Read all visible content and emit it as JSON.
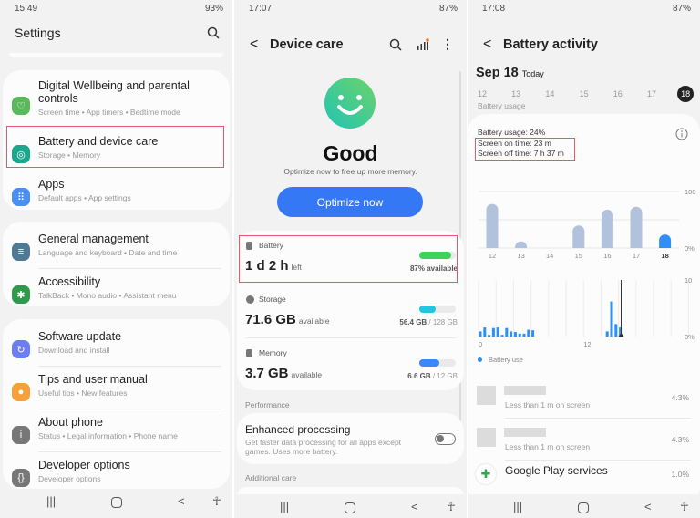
{
  "settings": {
    "status": {
      "time": "15:49",
      "battery": "93%"
    },
    "title": "Settings",
    "groups": [
      [
        {
          "title": "Digital Wellbeing and parental controls",
          "subtitle": "Screen time  •  App timers  •  Bedtime mode",
          "icon": "digital-wellbeing-icon",
          "color": "#5cb85c"
        },
        {
          "title": "Battery and device care",
          "subtitle": "Storage  •  Memory",
          "icon": "device-care-icon",
          "color": "#1aa78c"
        },
        {
          "title": "Apps",
          "subtitle": "Default apps  •  App settings",
          "icon": "apps-icon",
          "color": "#4b8ff5"
        }
      ],
      [
        {
          "title": "General management",
          "subtitle": "Language and keyboard  •  Date and time",
          "icon": "sliders-icon",
          "color": "#4f7a94"
        },
        {
          "title": "Accessibility",
          "subtitle": "TalkBack  •  Mono audio  •  Assistant menu",
          "icon": "accessibility-icon",
          "color": "#2f9a49"
        }
      ],
      [
        {
          "title": "Software update",
          "subtitle": "Download and install",
          "icon": "software-update-icon",
          "color": "#6c7ef2"
        },
        {
          "title": "Tips and user manual",
          "subtitle": "Useful tips  •  New features",
          "icon": "lightbulb-icon",
          "color": "#f5a03a"
        },
        {
          "title": "About phone",
          "subtitle": "Status  •  Legal information  •  Phone name",
          "icon": "info-icon",
          "color": "#777777"
        },
        {
          "title": "Developer options",
          "subtitle": "Developer options",
          "icon": "developer-icon",
          "color": "#777777"
        }
      ]
    ]
  },
  "device_care": {
    "status": {
      "time": "17:07",
      "battery": "87%"
    },
    "title": "Device care",
    "state": "Good",
    "message": "Optimize now to free up more memory.",
    "optimize_label": "Optimize now",
    "battery": {
      "label": "Battery",
      "value": "1 d 2 h",
      "unit": "left",
      "detail": "87% available",
      "level": 0.87,
      "color": "#3ed35a"
    },
    "storage": {
      "label": "Storage",
      "value": "71.6 GB",
      "unit": "available",
      "used": "56.4 GB",
      "total": " / 128 GB",
      "level": 0.44,
      "color": "#1ec8e0"
    },
    "memory": {
      "label": "Memory",
      "value": "3.7 GB",
      "unit": "available",
      "used": "6.6 GB",
      "total": " / 12 GB",
      "level": 0.55,
      "color": "#3d86f5"
    },
    "performance_header": "Performance",
    "enhanced_title": "Enhanced processing",
    "enhanced_desc": "Get faster data processing for all apps except games. Uses more battery.",
    "enhanced_on": false,
    "additional_header": "Additional care"
  },
  "battery_activity": {
    "status": {
      "time": "17:08",
      "battery": "87%"
    },
    "title": "Battery activity",
    "date": "Sep 18",
    "today": "Today",
    "days": [
      "12",
      "13",
      "14",
      "15",
      "16",
      "17",
      "18"
    ],
    "selected_day": "18",
    "section": "Battery usage",
    "usage": "Battery usage: 24%",
    "screen_on": "Screen on time: 23 m",
    "screen_off": "Screen off time: 7 h 37 m",
    "legend": "Battery use",
    "apps": [
      {
        "name": "",
        "detail": "Less than 1 m on screen",
        "percent": "4.3%"
      },
      {
        "name": "",
        "detail": "Less than 1 m on screen",
        "percent": "4.3%"
      },
      {
        "name": "Google Play services",
        "detail": "",
        "percent": "1.0%"
      }
    ]
  },
  "chart_data": [
    {
      "type": "bar",
      "categories": [
        "12",
        "13",
        "14",
        "15",
        "16",
        "17",
        "18"
      ],
      "values": [
        78,
        3,
        0,
        40,
        68,
        73,
        24
      ],
      "ylim": [
        0,
        100
      ],
      "ytick_labels": [
        "100",
        "0%"
      ],
      "highlight": "18",
      "colors": {
        "past": "#b3c2dc",
        "selected": "#2f8ff5"
      }
    },
    {
      "type": "bar",
      "x_tick_labels": [
        "0",
        "12"
      ],
      "ylim": [
        0,
        10
      ],
      "ytick_labels": [
        "10",
        "0%"
      ],
      "series": [
        {
          "name": "Battery use",
          "values": [
            0.9,
            1.6,
            0.3,
            1.5,
            1.6,
            0.3,
            1.5,
            0.9,
            0.8,
            0.5,
            0.5,
            1.2,
            1.1,
            0,
            0,
            0,
            0,
            0,
            0,
            0,
            0,
            0,
            0,
            0,
            0,
            0,
            0,
            0,
            0,
            0.9,
            6.2,
            2.2,
            1.6
          ]
        }
      ],
      "color": "#2f8ff5"
    }
  ]
}
